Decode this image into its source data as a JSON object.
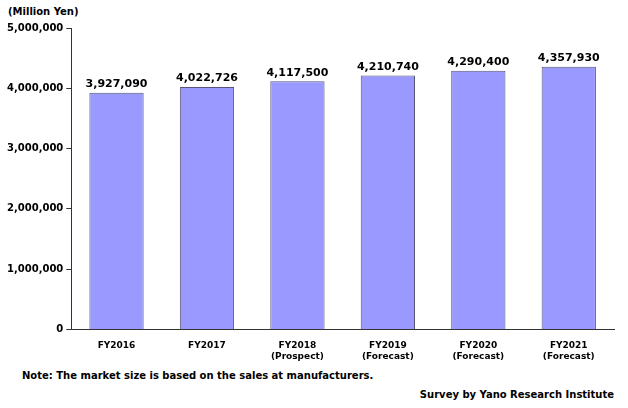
{
  "chart_data": {
    "type": "bar",
    "ylabel": "(Million Yen)",
    "note": "Note: The market size is based on the sales at manufacturers.",
    "source": "Survey by Yano Research Institute",
    "categories": [
      "FY2016",
      "FY2017",
      "FY2018\n(Prospect)",
      "FY2019\n(Forecast)",
      "FY2020\n(Forecast)",
      "FY2021\n(Forecast)"
    ],
    "values": [
      3927090,
      4022726,
      4117500,
      4210740,
      4290400,
      4357930
    ],
    "value_labels": [
      "3,927,090",
      "4,022,726",
      "4,117,500",
      "4,210,740",
      "4,290,400",
      "4,357,930"
    ],
    "data_labels": true,
    "color": "#9999ff",
    "ylim": [
      0,
      5000000
    ],
    "yticks": [
      0,
      {
        "value": 1000000,
        "label": "1,000,000"
      },
      {
        "value": 2000000,
        "label": "2,000,000"
      },
      {
        "value": 3000000,
        "label": "3,000,000"
      },
      {
        "value": 4000000,
        "label": "4,000,000"
      },
      {
        "value": 5000000,
        "label": "5,000,000"
      }
    ],
    "grid": false
  }
}
